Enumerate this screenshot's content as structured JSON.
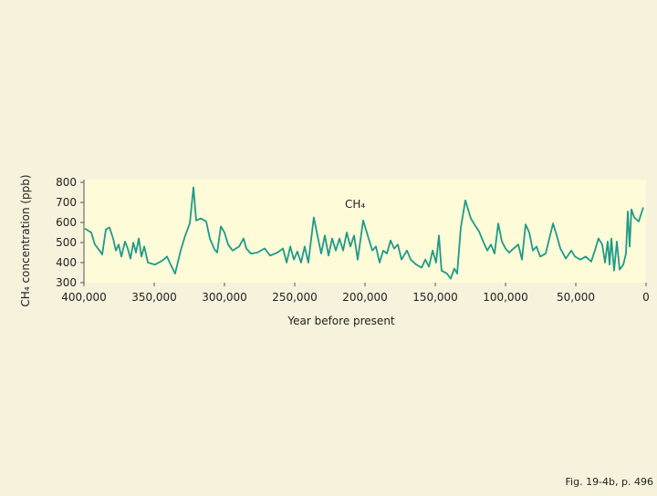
{
  "chart_data": {
    "type": "line",
    "ylabel": "CH₄ concentration (ppb)",
    "xlabel": "Year before present",
    "annotation": "CH₄",
    "footer": "Fig. 19-4b, p. 496",
    "xlim": [
      400000,
      0
    ],
    "ylim": [
      300,
      800
    ],
    "xticks": [
      {
        "value": 400000,
        "label": "400,000"
      },
      {
        "value": 350000,
        "label": "350,000"
      },
      {
        "value": 300000,
        "label": "300,000"
      },
      {
        "value": 250000,
        "label": "250,000"
      },
      {
        "value": 200000,
        "label": "200,000"
      },
      {
        "value": 150000,
        "label": "150,000"
      },
      {
        "value": 100000,
        "label": "100,000"
      },
      {
        "value": 50000,
        "label": "50,000"
      },
      0
    ],
    "yticks": [
      300,
      400,
      500,
      600,
      700,
      800
    ],
    "x": [
      399400,
      394800,
      392200,
      388300,
      387000,
      384400,
      381800,
      379200,
      377300,
      375300,
      373400,
      370800,
      368800,
      366900,
      364900,
      363000,
      361000,
      359100,
      357100,
      354500,
      349400,
      344200,
      340900,
      338300,
      335100,
      331200,
      327900,
      324700,
      322100,
      320100,
      316900,
      313000,
      310400,
      307100,
      305200,
      302600,
      300000,
      297400,
      294200,
      289600,
      286400,
      284400,
      281200,
      276600,
      271400,
      267500,
      262300,
      258400,
      255800,
      253200,
      250600,
      248100,
      245500,
      242900,
      240300,
      236400,
      233800,
      231200,
      228600,
      226000,
      223400,
      220800,
      218200,
      215600,
      213000,
      210400,
      207800,
      205200,
      201300,
      197400,
      194800,
      192200,
      189600,
      187000,
      184400,
      181800,
      179200,
      176600,
      174000,
      170100,
      167500,
      163600,
      159700,
      157100,
      154500,
      151900,
      149400,
      147400,
      145500,
      141600,
      139000,
      136400,
      134400,
      131800,
      128600,
      126600,
      124700,
      122100,
      118800,
      115600,
      113000,
      110400,
      107800,
      105200,
      102600,
      100000,
      97400,
      94200,
      90900,
      88300,
      85700,
      83100,
      80500,
      77900,
      75300,
      71400,
      68800,
      66200,
      63600,
      61000,
      57100,
      53200,
      50600,
      46800,
      42900,
      39000,
      36400,
      33800,
      31200,
      29200,
      27300,
      26000,
      24700,
      22700,
      20800,
      18800,
      16200,
      14300,
      13000,
      11700,
      10400,
      8400,
      5200,
      2000
    ],
    "series": [
      {
        "color": "#1f9a88",
        "values": [
          570,
          550,
          490,
          455,
          440,
          565,
          575,
          520,
          460,
          490,
          430,
          505,
          470,
          420,
          500,
          450,
          520,
          430,
          480,
          400,
          390,
          410,
          430,
          390,
          345,
          460,
          535,
          595,
          775,
          610,
          620,
          605,
          520,
          465,
          450,
          580,
          550,
          490,
          460,
          480,
          520,
          470,
          445,
          450,
          470,
          435,
          450,
          470,
          400,
          480,
          415,
          455,
          400,
          480,
          400,
          625,
          535,
          445,
          535,
          435,
          520,
          460,
          520,
          460,
          550,
          480,
          535,
          415,
          610,
          520,
          460,
          480,
          400,
          460,
          445,
          510,
          470,
          490,
          415,
          460,
          415,
          390,
          375,
          415,
          380,
          460,
          400,
          535,
          360,
          345,
          320,
          370,
          345,
          575,
          710,
          665,
          620,
          590,
          555,
          500,
          460,
          490,
          445,
          595,
          505,
          470,
          450,
          470,
          490,
          415,
          590,
          550,
          460,
          480,
          430,
          445,
          520,
          595,
          535,
          470,
          420,
          460,
          430,
          415,
          430,
          405,
          460,
          520,
          490,
          400,
          505,
          390,
          520,
          360,
          505,
          365,
          390,
          445,
          655,
          480,
          665,
          625,
          605,
          675
        ]
      }
    ]
  }
}
